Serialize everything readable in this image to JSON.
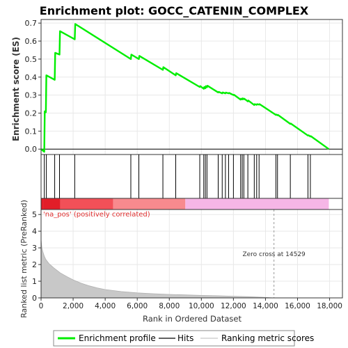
{
  "chart_data": {
    "type": "line",
    "title": "Enrichment plot: GOCC_CATENIN_COMPLEX",
    "colors": {
      "enrichment": "#00ee00",
      "hits": "#000000",
      "metric_fill": "#c8c8c8",
      "zero_cross_line": "#9a9a9a",
      "annotation_red": "#e03030",
      "band_dark_red": "#e21e28",
      "band_red": "#f25058",
      "band_salmon": "#f88a8e",
      "band_pink": "#f6b6e6",
      "grid": "#e8e8e8"
    },
    "enrichment_panel": {
      "ylabel": "Enrichment score (ES)",
      "ylim": [
        -0.03,
        0.72
      ],
      "yticks": [
        "0.0",
        "0.1",
        "0.2",
        "0.3",
        "0.4",
        "0.5",
        "0.6",
        "0.7"
      ],
      "ytick_values": [
        0.0,
        0.1,
        0.2,
        0.3,
        0.4,
        0.5,
        0.6,
        0.7
      ],
      "series": [
        {
          "name": "Enrichment profile",
          "x": [
            0,
            200,
            230,
            300,
            330,
            850,
            880,
            1150,
            1180,
            2100,
            2130,
            5600,
            5630,
            6100,
            6130,
            7600,
            7630,
            8400,
            8430,
            9900,
            9930,
            10150,
            10180,
            10250,
            10280,
            10350,
            10380,
            11050,
            11080,
            11300,
            11330,
            11500,
            11530,
            11700,
            11730,
            12000,
            12030,
            12450,
            12480,
            12550,
            12580,
            12650,
            12680,
            12900,
            12930,
            13300,
            13330,
            13450,
            13480,
            13600,
            13630,
            14650,
            14680,
            14750,
            14780,
            15550,
            15580,
            16650,
            16680,
            16800,
            16830,
            17950
          ],
          "y": [
            0.0,
            -0.015,
            0.21,
            0.205,
            0.41,
            0.385,
            0.535,
            0.525,
            0.655,
            0.61,
            0.695,
            0.5,
            0.525,
            0.5,
            0.518,
            0.44,
            0.455,
            0.41,
            0.422,
            0.345,
            0.35,
            0.335,
            0.345,
            0.338,
            0.35,
            0.344,
            0.352,
            0.315,
            0.318,
            0.31,
            0.315,
            0.31,
            0.314,
            0.31,
            0.312,
            0.3,
            0.302,
            0.275,
            0.28,
            0.276,
            0.282,
            0.277,
            0.28,
            0.265,
            0.27,
            0.245,
            0.25,
            0.246,
            0.25,
            0.247,
            0.25,
            0.19,
            0.192,
            0.188,
            0.19,
            0.14,
            0.142,
            0.075,
            0.077,
            0.07,
            0.072,
            0.0
          ]
        }
      ]
    },
    "hits": [
      200,
      330,
      850,
      1150,
      2100,
      5600,
      6100,
      7600,
      8400,
      9900,
      10150,
      10250,
      10350,
      11050,
      11300,
      11500,
      11700,
      12000,
      12450,
      12550,
      12650,
      12900,
      13300,
      13450,
      13600,
      14650,
      14750,
      15550,
      16650,
      16800
    ],
    "correlation_band": {
      "segments": [
        {
          "from": 0,
          "to": 150,
          "color": "band_dark_red"
        },
        {
          "from": 150,
          "to": 1200,
          "color": "band_dark_red"
        },
        {
          "from": 1200,
          "to": 4500,
          "color": "band_red"
        },
        {
          "from": 4500,
          "to": 9000,
          "color": "band_salmon"
        },
        {
          "from": 9000,
          "to": 17950,
          "color": "band_pink"
        }
      ],
      "label": "'na_pos' (positively correlated)"
    },
    "metric_panel": {
      "ylabel": "Ranked list metric (PreRanked)",
      "ylim": [
        0,
        5.3
      ],
      "yticks": [
        "0",
        "1",
        "2",
        "3",
        "4",
        "5"
      ],
      "ytick_values": [
        0,
        1,
        2,
        3,
        4,
        5
      ],
      "zero_cross_x": 14529,
      "zero_cross_label": "Zero cross at 14529",
      "curve_x": [
        0,
        50,
        100,
        200,
        300,
        500,
        800,
        1200,
        1600,
        2000,
        2500,
        3000,
        3500,
        4000,
        5000,
        6000,
        7000,
        8000,
        9000,
        10000,
        11000,
        12000,
        13000,
        14000,
        14529,
        15000,
        16000,
        17000,
        17950
      ],
      "curve_y": [
        3.5,
        3.0,
        2.8,
        2.5,
        2.3,
        2.05,
        1.8,
        1.5,
        1.28,
        1.08,
        0.88,
        0.72,
        0.6,
        0.5,
        0.38,
        0.3,
        0.25,
        0.21,
        0.18,
        0.15,
        0.13,
        0.1,
        0.07,
        0.03,
        0.0,
        -0.01,
        -0.03,
        -0.05,
        -0.06
      ]
    },
    "xaxis": {
      "xlabel": "Rank in Ordered Dataset",
      "xlim": [
        0,
        18800
      ],
      "xticks": [
        "0",
        "2,000",
        "4,000",
        "6,000",
        "8,000",
        "10,000",
        "12,000",
        "14,000",
        "16,000",
        "18,000"
      ],
      "xtick_values": [
        0,
        2000,
        4000,
        6000,
        8000,
        10000,
        12000,
        14000,
        16000,
        18000
      ]
    },
    "legend": {
      "placement": "bottom",
      "entries": [
        {
          "label": "Enrichment profile",
          "color_key": "enrichment"
        },
        {
          "label": "Hits",
          "color_key": "hits"
        },
        {
          "label": "Ranking metric scores",
          "color_key": "metric_fill"
        }
      ]
    }
  }
}
